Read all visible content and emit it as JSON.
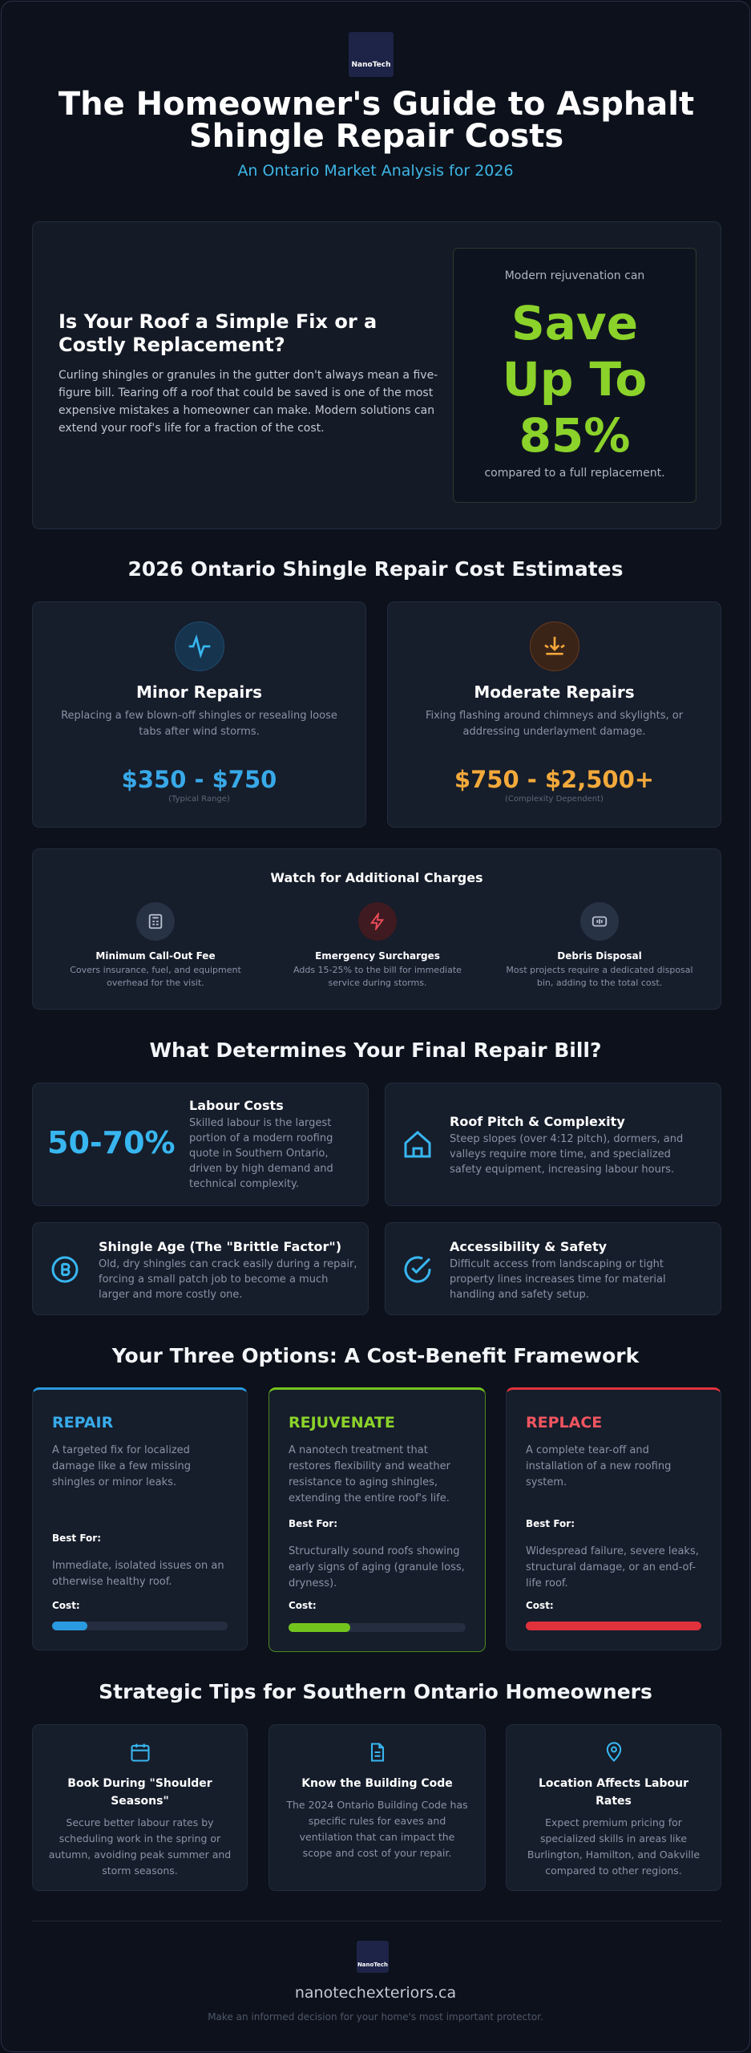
{
  "header": {
    "logo": "NanoTech",
    "title": "The Homeowner's Guide to Asphalt Shingle Repair Costs",
    "subtitle": "An Ontario Market Analysis for 2026"
  },
  "hero": {
    "heading": "Is Your Roof a Simple Fix or a Costly Replacement?",
    "body": "Curling shingles or granules in the gutter don't always mean a five-figure bill. Tearing off a roof that could be saved is one of the most expensive mistakes a homeowner can make. Modern solutions can extend your roof's life for a fraction of the cost.",
    "callout": {
      "intro": "Modern rejuvenation can",
      "headline": "Save Up To 85%",
      "outro": "compared to a full replacement."
    }
  },
  "estimates": {
    "heading": "2026 Ontario Shingle Repair Cost Estimates",
    "cards": [
      {
        "title": "Minor Repairs",
        "description": "Replacing a few blown-off shingles or resealing loose tabs after wind storms.",
        "price": "$350 - $750",
        "note": "(Typical Range)"
      },
      {
        "title": "Moderate Repairs",
        "description": "Fixing flashing around chimneys and skylights, or addressing underlayment damage.",
        "price": "$750 - $2,500+",
        "note": "(Complexity Dependent)"
      }
    ]
  },
  "charges": {
    "heading": "Watch for Additional Charges",
    "items": [
      {
        "title": "Minimum Call-Out Fee",
        "description": "Covers insurance, fuel, and equipment overhead for the visit."
      },
      {
        "title": "Emergency Surcharges",
        "description": "Adds 15-25% to the bill for immediate service during storms."
      },
      {
        "title": "Debris Disposal",
        "description": "Most projects require a dedicated disposal bin, adding to the total cost."
      }
    ]
  },
  "factors": {
    "heading": "What Determines Your Final Repair Bill?",
    "items": [
      {
        "stat": "50-70%",
        "title": "Labour Costs",
        "description": "Skilled labour is the largest portion of a modern roofing quote in Southern Ontario, driven by high demand and technical complexity."
      },
      {
        "title": "Roof Pitch & Complexity",
        "description": "Steep slopes (over 4:12 pitch), dormers, and valleys require more time, and specialized safety equipment, increasing labour hours."
      },
      {
        "title": "Shingle Age (The \"Brittle Factor\")",
        "description": "Old, dry shingles can crack easily during a repair, forcing a small patch job to become a much larger and more costly one."
      },
      {
        "title": "Accessibility & Safety",
        "description": "Difficult access from landscaping or tight property lines increases time for material handling and safety setup."
      }
    ]
  },
  "options": {
    "heading": "Your Three Options: A Cost-Benefit Framework",
    "cards": [
      {
        "title": "REPAIR",
        "description": "A targeted fix for localized damage like a few missing shingles or minor leaks.",
        "best_label": "Best For:",
        "best": "Immediate, isolated issues on an otherwise healthy roof.",
        "cost_label": "Cost:"
      },
      {
        "title": "REJUVENATE",
        "description": "A nanotech treatment that restores flexibility and weather resistance to aging shingles, extending the entire roof's life.",
        "best_label": "Best For:",
        "best": "Structurally sound roofs showing early signs of aging (granule loss, dryness).",
        "cost_label": "Cost:"
      },
      {
        "title": "REPLACE",
        "description": "A complete tear-off and installation of a new roofing system.",
        "best_label": "Best For:",
        "best": "Widespread failure, severe leaks, structural damage, or an end-of-life roof.",
        "cost_label": "Cost:"
      }
    ]
  },
  "tips": {
    "heading": "Strategic Tips for Southern Ontario Homeowners",
    "items": [
      {
        "title": "Book During \"Shoulder Seasons\"",
        "description": "Secure better labour rates by scheduling work in the spring or autumn, avoiding peak summer and storm seasons."
      },
      {
        "title": "Know the Building Code",
        "description": "The 2024 Ontario Building Code has specific rules for eaves and ventilation that can impact the scope and cost of your repair."
      },
      {
        "title": "Location Affects Labour Rates",
        "description": "Expect premium pricing for specialized skills in areas like Burlington, Hamilton, and Oakville compared to other regions."
      }
    ]
  },
  "footer": {
    "logo": "NanoTech",
    "site": "nanotechexteriors.ca",
    "tagline": "Make an informed decision for your home's most important protector."
  }
}
